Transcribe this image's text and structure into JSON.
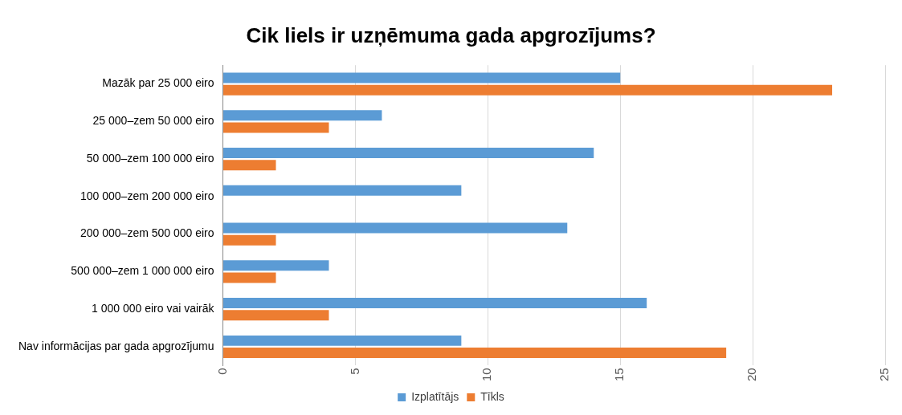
{
  "chart_data": {
    "type": "bar",
    "orientation": "horizontal",
    "title": "Cik liels ir uzņēmuma gada apgrozījums?",
    "categories": [
      "Mazāk par 25 000 eiro",
      "25 000–zem 50 000 eiro",
      "50 000–zem 100 000 eiro",
      "100 000–zem 200 000 eiro",
      "200 000–zem 500 000 eiro",
      "500 000–zem 1 000 000 eiro",
      "1 000 000 eiro vai vairāk",
      "Nav informācijas par gada apgrozījumu"
    ],
    "series": [
      {
        "name": "Izplatītājs",
        "color": "#5b9bd5",
        "values": [
          15,
          6,
          14,
          9,
          13,
          4,
          16,
          9
        ]
      },
      {
        "name": "Tīkls",
        "color": "#ed7d31",
        "values": [
          23,
          4,
          2,
          0,
          2,
          2,
          4,
          19
        ]
      }
    ],
    "xlim": [
      0,
      25
    ],
    "xticks": [
      0,
      5,
      10,
      15,
      20,
      25
    ],
    "grid": "x",
    "legend": "bottom"
  }
}
